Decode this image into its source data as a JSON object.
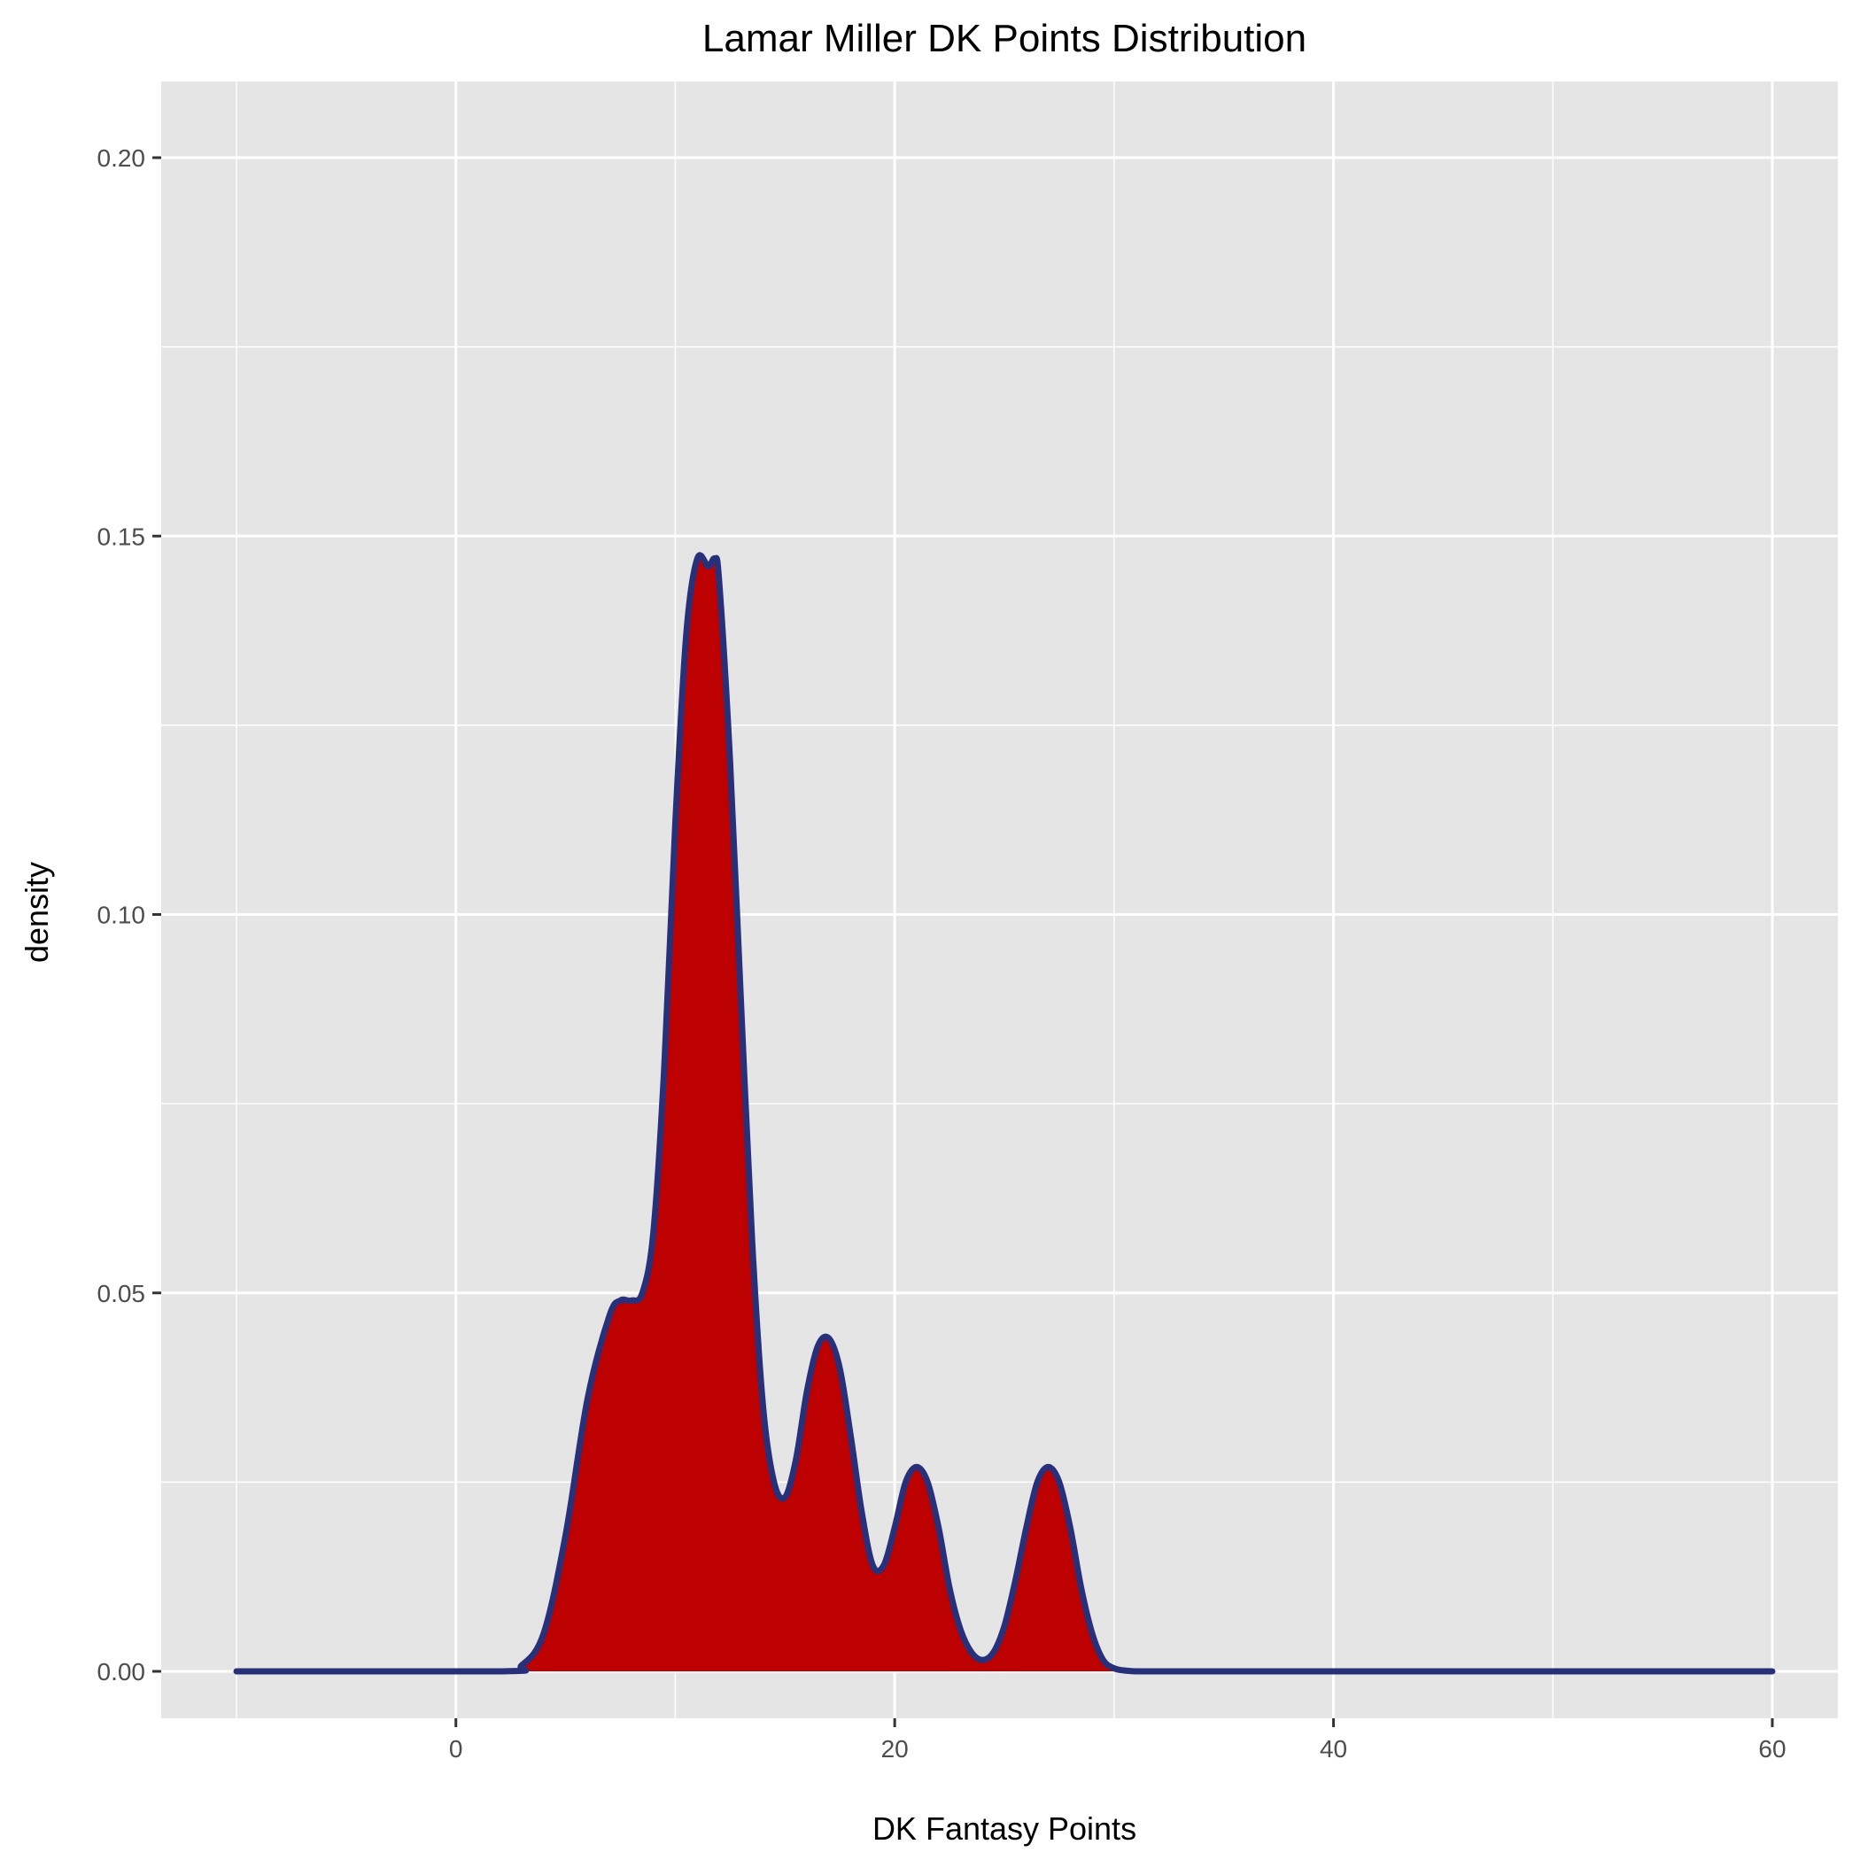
{
  "chart_data": {
    "type": "area",
    "title": "Lamar Miller DK Points Distribution",
    "xlabel": "DK Fantasy Points",
    "ylabel": "density",
    "xlim": [
      -10,
      60
    ],
    "ylim": [
      0,
      0.2
    ],
    "x_ticks": [
      {
        "value": 0,
        "label": "0"
      },
      {
        "value": 20,
        "label": "20"
      },
      {
        "value": 40,
        "label": "40"
      },
      {
        "value": 60,
        "label": "60"
      }
    ],
    "y_ticks": [
      {
        "value": 0.0,
        "label": "0.00"
      },
      {
        "value": 0.05,
        "label": "0.05"
      },
      {
        "value": 0.1,
        "label": "0.10"
      },
      {
        "value": 0.15,
        "label": "0.15"
      },
      {
        "value": 0.2,
        "label": "0.20"
      }
    ],
    "grid": true,
    "colors": {
      "panel": "#e5e5e5",
      "grid": "#ffffff",
      "fill": "#bd0000",
      "line": "#28307a"
    },
    "series": [
      {
        "x": [
          -10,
          2,
          3,
          4,
          5,
          6,
          7,
          7.5,
          8,
          8.5,
          9,
          9.5,
          10,
          10.5,
          11,
          11.5,
          11.8,
          12,
          12.5,
          13,
          13.5,
          14,
          14.5,
          15,
          15.5,
          16,
          16.5,
          17,
          17.5,
          18,
          18.5,
          19,
          19.5,
          20,
          20.5,
          21,
          21.5,
          22,
          22.5,
          23,
          23.5,
          24,
          24.5,
          25,
          25.5,
          26,
          26.5,
          27,
          27.5,
          28,
          28.5,
          29,
          29.5,
          30,
          30.5,
          31,
          32,
          33,
          34,
          35,
          60
        ],
        "y": [
          0,
          0,
          0.0008,
          0.005,
          0.018,
          0.036,
          0.047,
          0.049,
          0.049,
          0.05,
          0.058,
          0.08,
          0.112,
          0.137,
          0.147,
          0.146,
          0.147,
          0.144,
          0.12,
          0.088,
          0.057,
          0.035,
          0.025,
          0.023,
          0.028,
          0.037,
          0.043,
          0.044,
          0.04,
          0.031,
          0.021,
          0.014,
          0.014,
          0.019,
          0.025,
          0.027,
          0.025,
          0.019,
          0.011,
          0.0055,
          0.0025,
          0.0015,
          0.0025,
          0.006,
          0.012,
          0.019,
          0.025,
          0.027,
          0.025,
          0.019,
          0.011,
          0.005,
          0.0015,
          0.0004,
          0.0001,
          0,
          0,
          0,
          0,
          0,
          0
        ]
      }
    ]
  }
}
